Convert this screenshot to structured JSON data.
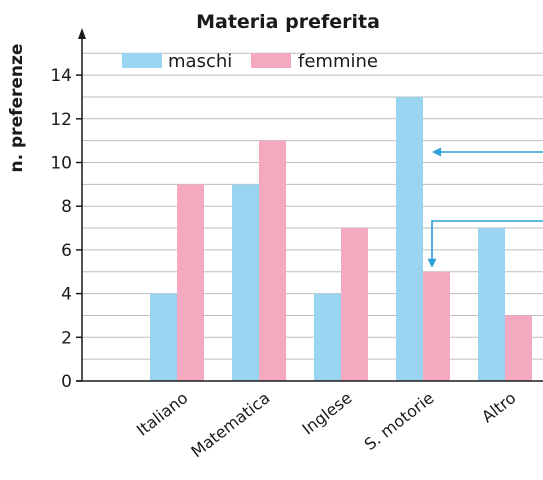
{
  "chart_data": {
    "type": "bar",
    "title": "Materia preferita",
    "xlabel": "",
    "ylabel": "n. preferenze",
    "categories": [
      "Italiano",
      "Matematica",
      "Inglese",
      "S. motorie",
      "Altro"
    ],
    "series": [
      {
        "name": "maschi",
        "color": "#99d4f0",
        "values": [
          4,
          9,
          4,
          13,
          7
        ]
      },
      {
        "name": "femmine",
        "color": "#f4a9be",
        "values": [
          9,
          11,
          7,
          5,
          3
        ]
      }
    ],
    "ylim": [
      0,
      15
    ],
    "yticks": [
      0,
      2,
      4,
      6,
      8,
      10,
      12,
      14
    ],
    "minor_grid_step": 1,
    "grid": true,
    "legend_position": "top",
    "annotations": [
      {
        "type": "arrow",
        "target_category": "S. motorie",
        "target_series": "maschi",
        "color": "#2a9fd8"
      },
      {
        "type": "arrow",
        "target_category": "S. motorie",
        "target_series": "femmine",
        "color": "#2a9fd8"
      }
    ],
    "colors": {
      "axis": "#1a1a1a",
      "grid": "#bdbdbd",
      "arrow": "#2a9fd8"
    }
  }
}
